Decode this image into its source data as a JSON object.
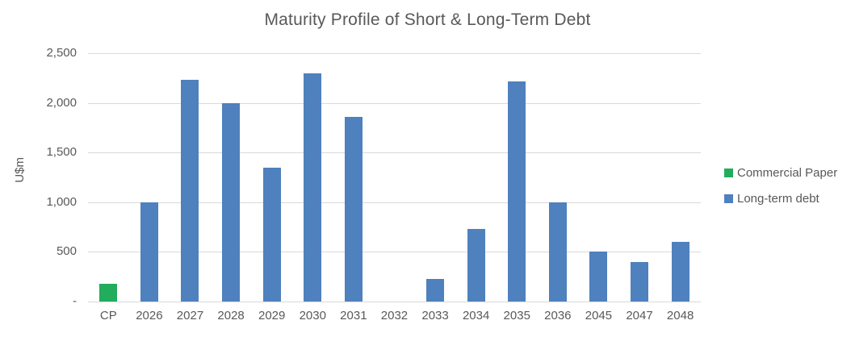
{
  "chart_data": {
    "type": "bar",
    "title": "Maturity Profile of Short & Long-Term Debt",
    "xlabel": "",
    "ylabel": "U$m",
    "ylim": [
      0,
      2500
    ],
    "grid": true,
    "legend_position": "right",
    "yticks": [
      {
        "label": "-",
        "value": 0
      },
      {
        "label": "500",
        "value": 500
      },
      {
        "label": "1,000",
        "value": 1000
      },
      {
        "label": "1,500",
        "value": 1500
      },
      {
        "label": "2,000",
        "value": 2000
      },
      {
        "label": "2,500",
        "value": 2500
      }
    ],
    "categories": [
      "CP",
      "2026",
      "2027",
      "2028",
      "2029",
      "2030",
      "2031",
      "2032",
      "2033",
      "2034",
      "2035",
      "2036",
      "2045",
      "2047",
      "2048"
    ],
    "series": [
      {
        "name": "Commercial Paper",
        "color": "#22AC5C",
        "values": [
          175,
          0,
          0,
          0,
          0,
          0,
          0,
          0,
          0,
          0,
          0,
          0,
          0,
          0,
          0
        ]
      },
      {
        "name": "Long-term debt",
        "color": "#4E81BD",
        "values": [
          0,
          1000,
          2230,
          2000,
          1350,
          2300,
          1860,
          0,
          225,
          730,
          2220,
          1000,
          500,
          400,
          600
        ]
      }
    ],
    "colors": {
      "grid": "#d9d9d9",
      "text": "#595959"
    }
  }
}
